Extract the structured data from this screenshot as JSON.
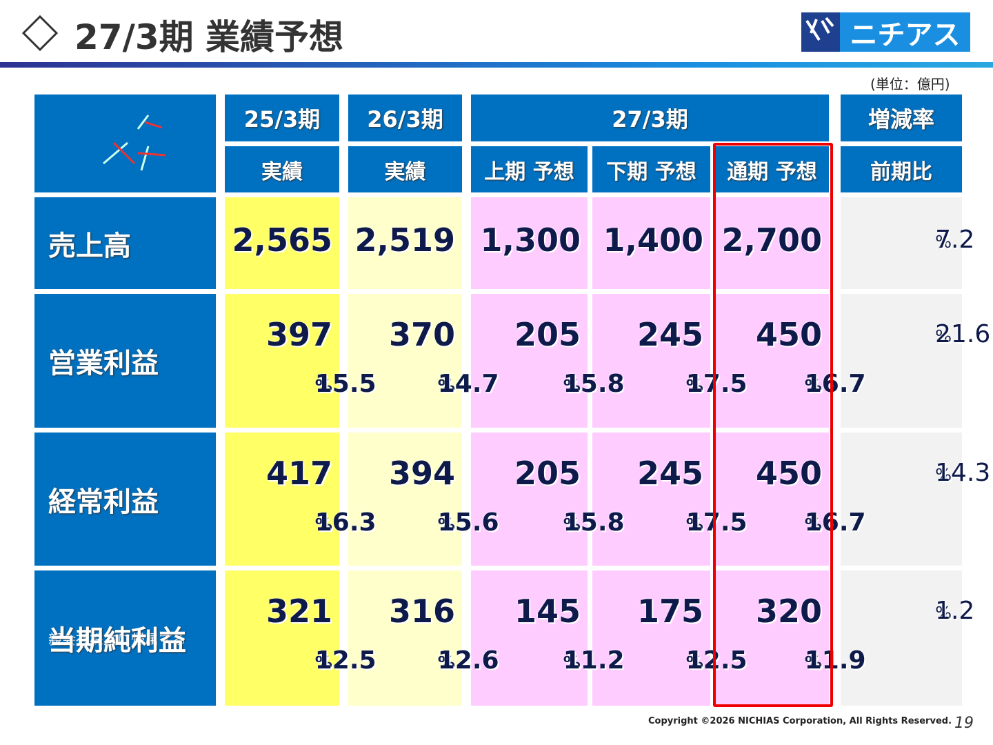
{
  "header": {
    "title": "27/3期 業績予想",
    "logo": "ニチアス",
    "unit": "(単位：億円)"
  },
  "table": {
    "groups": [
      "25/3期",
      "26/3期",
      "27/3期",
      "増減率"
    ],
    "subheaders": [
      "実績",
      "実績",
      "上期 予想",
      "下期 予想",
      "通期 予想",
      "前期比"
    ],
    "rows": [
      {
        "label": "売上高",
        "values": [
          "2,565",
          "2,519",
          "1,300",
          "1,400",
          "2,700"
        ],
        "change": "7.2",
        "unit": "%"
      },
      {
        "label": "営業利益",
        "values": [
          "397",
          "370",
          "205",
          "245",
          "450"
        ],
        "margins": [
          "15.5",
          "14.7",
          "15.8",
          "17.5",
          "16.7"
        ],
        "change": "21.6",
        "unit": "%"
      },
      {
        "label": "経常利益",
        "values": [
          "417",
          "394",
          "205",
          "245",
          "450"
        ],
        "margins": [
          "16.3",
          "15.6",
          "15.8",
          "17.5",
          "16.7"
        ],
        "change": "14.3",
        "unit": "%"
      },
      {
        "sublabel": "親会社株主に帰属する",
        "label": "当期純利益",
        "values": [
          "321",
          "316",
          "145",
          "175",
          "320"
        ],
        "margins": [
          "12.5",
          "12.6",
          "11.2",
          "12.5",
          "11.9"
        ],
        "change": "1.2",
        "unit": "%"
      }
    ]
  },
  "footer": {
    "copyright": "Copyright ©2026 NICHIAS Corporation, All Rights Reserved.",
    "page": "19"
  }
}
